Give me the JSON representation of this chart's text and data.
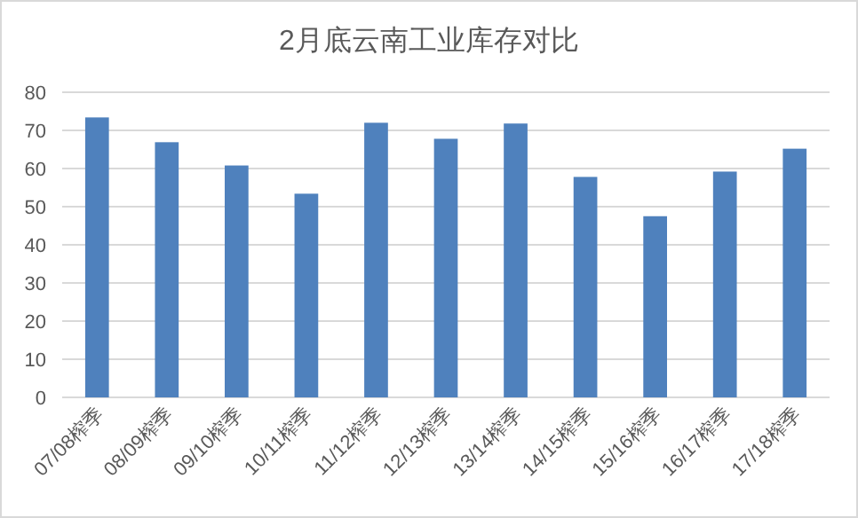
{
  "chart_data": {
    "type": "bar",
    "title": "2月底云南工业库存对比",
    "categories": [
      "07/08榨季",
      "08/09榨季",
      "09/10榨季",
      "10/11榨季",
      "11/12榨季",
      "12/13榨季",
      "13/14榨季",
      "14/15榨季",
      "15/16榨季",
      "16/17榨季",
      "17/18榨季"
    ],
    "values": [
      73.4,
      66.9,
      60.8,
      53.4,
      72.0,
      67.8,
      71.8,
      57.8,
      47.5,
      59.2,
      65.2
    ],
    "color": "#4f81bd",
    "ylim": [
      0,
      80
    ],
    "yticks": [
      0,
      10,
      20,
      30,
      40,
      50,
      60,
      70,
      80
    ],
    "grid": "y"
  }
}
